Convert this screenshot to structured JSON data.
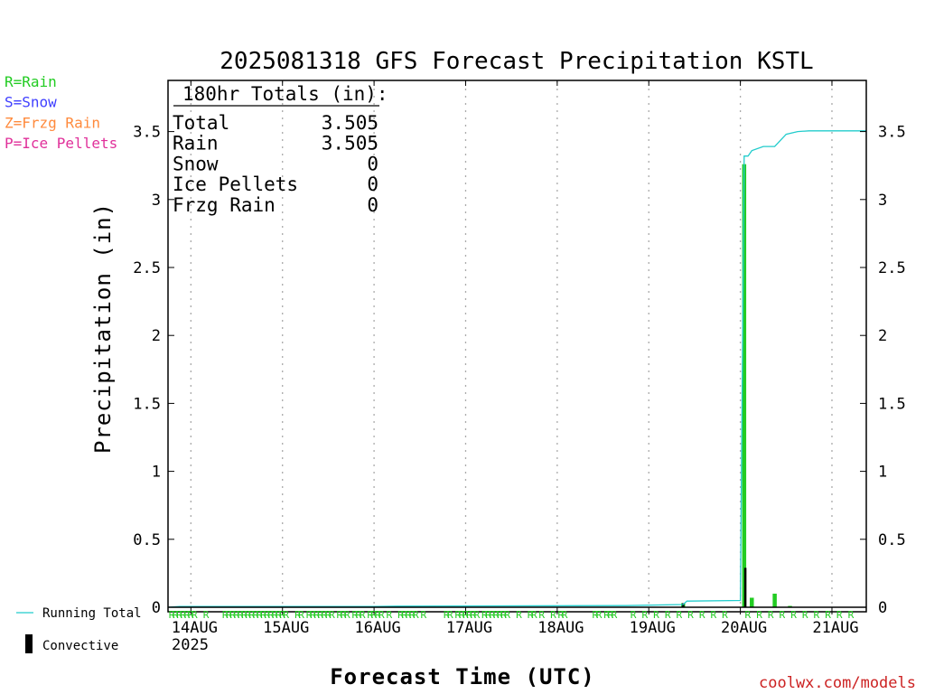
{
  "chart_data": {
    "type": "bar",
    "title": "2025081318 GFS Forecast Precipitation KSTL",
    "xlabel": "Forecast Time (UTC)",
    "ylabel": "Precipitation (in)",
    "ylim": [
      0,
      3.85
    ],
    "xlim_hours": [
      0,
      183
    ],
    "yticks": [
      {
        "value": 0,
        "label": "0"
      },
      {
        "value": 0.5,
        "label": "0.5"
      },
      {
        "value": 1,
        "label": "1"
      },
      {
        "value": 1.5,
        "label": "1.5"
      },
      {
        "value": 2,
        "label": "2"
      },
      {
        "value": 2.5,
        "label": "2.5"
      },
      {
        "value": 3,
        "label": "3"
      },
      {
        "value": 3.5,
        "label": "3.5"
      }
    ],
    "xticks": [
      {
        "hour": 6,
        "label": "14AUG"
      },
      {
        "hour": 30,
        "label": "15AUG"
      },
      {
        "hour": 54,
        "label": "16AUG"
      },
      {
        "hour": 78,
        "label": "17AUG"
      },
      {
        "hour": 102,
        "label": "18AUG"
      },
      {
        "hour": 126,
        "label": "19AUG"
      },
      {
        "hour": 150,
        "label": "20AUG"
      },
      {
        "hour": 174,
        "label": "21AUG"
      }
    ],
    "year_label": "2025",
    "grid": "vertical dotted",
    "series": [
      {
        "name": "Running Total",
        "kind": "line",
        "color": "#22cccc",
        "x_hours": [
          0,
          3,
          54,
          60,
          120,
          135,
          136,
          150,
          151,
          152,
          153,
          156,
          159,
          162,
          165,
          168,
          183
        ],
        "values": [
          0.0,
          0.005,
          0.006,
          0.008,
          0.012,
          0.02,
          0.045,
          0.05,
          3.32,
          3.32,
          3.36,
          3.39,
          3.39,
          3.48,
          3.5,
          3.505,
          3.505
        ]
      },
      {
        "name": "Rain",
        "kind": "bar",
        "color": "#22cc22",
        "x_hours": [
          135,
          151,
          153,
          159,
          163
        ],
        "values": [
          0.03,
          3.26,
          0.07,
          0.1,
          0.01
        ]
      },
      {
        "name": "Convective",
        "kind": "bar",
        "color": "#000000",
        "x_hours": [
          135,
          151.3
        ],
        "values": [
          0.03,
          0.29
        ]
      }
    ],
    "type_markers": {
      "label": "R",
      "hours": [
        0,
        1,
        2,
        3,
        4,
        5,
        6,
        9,
        14,
        15,
        16,
        17,
        18,
        19,
        20,
        21,
        22,
        23,
        24,
        25,
        26,
        27,
        28,
        29,
        30,
        33,
        34,
        36,
        37,
        38,
        39,
        40,
        41,
        42,
        44,
        45,
        46,
        48,
        49,
        50,
        52,
        53,
        54,
        55,
        57,
        60,
        61,
        62,
        63,
        64,
        66,
        72,
        73,
        75,
        76,
        77,
        78,
        79,
        80,
        82,
        83,
        84,
        85,
        86,
        87,
        88,
        91,
        94,
        95,
        97,
        100,
        102,
        103,
        111,
        112,
        114,
        115,
        116,
        121,
        124,
        127,
        130,
        133,
        136,
        139,
        142,
        145,
        151,
        154,
        157,
        160,
        163,
        166,
        169,
        172,
        175,
        178
      ]
    },
    "legend": {
      "top_left": [
        {
          "text": "R=Rain",
          "color": "#22cc22"
        },
        {
          "text": "S=Snow",
          "color": "#4040ff"
        },
        {
          "text": "Z=Frzg Rain",
          "color": "#ff8a3c"
        },
        {
          "text": "P=Ice Pellets",
          "color": "#e0309a"
        }
      ],
      "bottom_left": [
        {
          "text": "Running Total",
          "color": "#22cccc"
        },
        {
          "text": "Convective",
          "color": "#000000"
        }
      ]
    },
    "totals": {
      "header": "180hr Totals (in):",
      "rows": [
        {
          "label": "Total",
          "value": "3.505"
        },
        {
          "label": "Rain",
          "value": "3.505"
        },
        {
          "label": "Snow",
          "value": "0"
        },
        {
          "label": "Ice Pellets",
          "value": "0"
        },
        {
          "label": "Frzg Rain",
          "value": "0"
        }
      ]
    },
    "credit": "coolwx.com/models"
  }
}
